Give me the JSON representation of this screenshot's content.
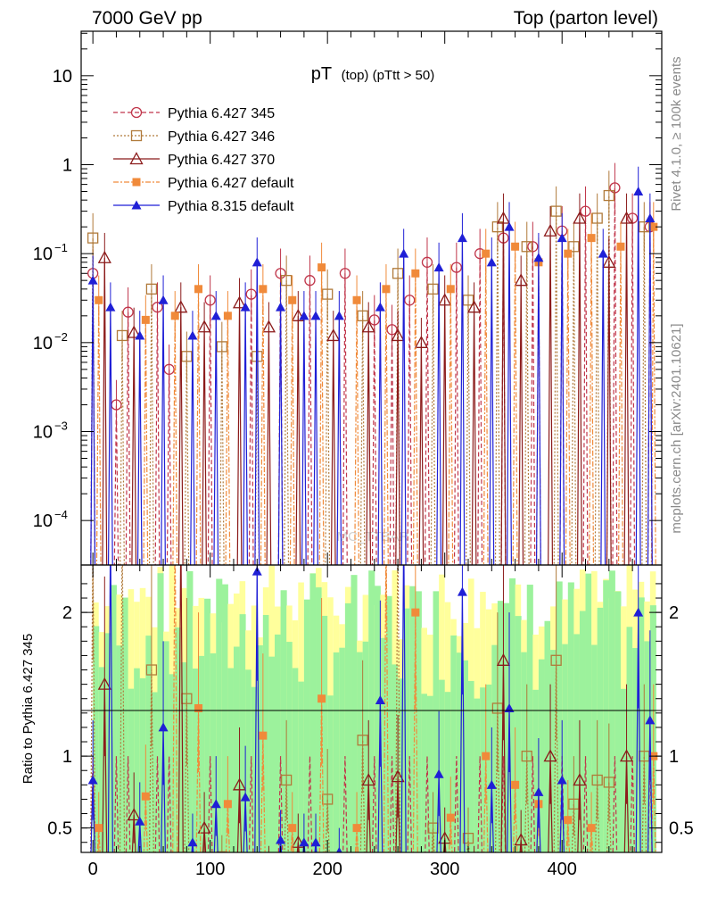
{
  "header": {
    "left": "7000 GeV pp",
    "right": "Top (parton level)"
  },
  "side_text": {
    "rivet": "Rivet 4.1.0, ≥ 100k events",
    "mcplots": "mcplots.cern.ch [arXiv:2401.10621]"
  },
  "watermark": "MC_TTBAR",
  "chart_data": {
    "type": "line",
    "title_main": "pT",
    "title_sub": "(top)  (pTtt > 50)",
    "xlim": [
      -10,
      485
    ],
    "main_ylim_log10": [
      -4.5,
      1.5
    ],
    "main_yticks": [
      {
        "exp": 1,
        "label": "10"
      },
      {
        "exp": 0,
        "label": "1"
      },
      {
        "exp": -1,
        "label": "10",
        "sup": "−1"
      },
      {
        "exp": -2,
        "label": "10",
        "sup": "−2"
      },
      {
        "exp": -3,
        "label": "10",
        "sup": "−3"
      },
      {
        "exp": -4,
        "label": "10",
        "sup": "−4"
      }
    ],
    "ratio_ylim": [
      0.33,
      2.33
    ],
    "ratio_yticks": [
      "2",
      "1",
      "0.5"
    ],
    "ratio_ytick_values": [
      2,
      1,
      0.5
    ],
    "ratio_ylabel": "Ratio to Pythia 6.427 345",
    "xticks": [
      "0",
      "100",
      "200",
      "300",
      "400"
    ],
    "xtick_values": [
      0,
      100,
      200,
      300,
      400
    ],
    "bin_width": 5,
    "series": [
      {
        "name": "Pythia 6.427 345",
        "color": "#c0354a",
        "marker": "open-circle",
        "dash": "5,3",
        "points": [
          [
            0,
            0.06
          ],
          [
            20,
            0.002
          ],
          [
            30,
            0.022
          ],
          [
            55,
            0.025
          ],
          [
            65,
            0.005
          ],
          [
            100,
            0.03
          ],
          [
            135,
            0.035
          ],
          [
            160,
            0.06
          ],
          [
            185,
            0.05
          ],
          [
            215,
            0.06
          ],
          [
            240,
            0.018
          ],
          [
            255,
            0.014
          ],
          [
            270,
            0.03
          ],
          [
            285,
            0.08
          ],
          [
            310,
            0.07
          ],
          [
            330,
            0.1
          ],
          [
            350,
            0.15
          ],
          [
            375,
            0.12
          ],
          [
            400,
            0.18
          ],
          [
            420,
            0.3
          ],
          [
            445,
            0.55
          ],
          [
            460,
            0.25
          ],
          [
            475,
            0.2
          ]
        ]
      },
      {
        "name": "Pythia 6.427 346",
        "color": "#b07a3a",
        "marker": "open-square",
        "dash": "2,2",
        "points": [
          [
            0,
            0.15
          ],
          [
            25,
            0.012
          ],
          [
            50,
            0.04
          ],
          [
            80,
            0.007
          ],
          [
            110,
            0.009
          ],
          [
            140,
            0.007
          ],
          [
            165,
            0.05
          ],
          [
            200,
            0.035
          ],
          [
            230,
            0.02
          ],
          [
            260,
            0.06
          ],
          [
            290,
            0.04
          ],
          [
            320,
            0.03
          ],
          [
            345,
            0.2
          ],
          [
            370,
            0.12
          ],
          [
            395,
            0.3
          ],
          [
            410,
            0.12
          ],
          [
            430,
            0.25
          ],
          [
            440,
            0.45
          ],
          [
            470,
            0.2
          ]
        ]
      },
      {
        "name": "Pythia 6.427 370",
        "color": "#8b1a1a",
        "marker": "open-triangle",
        "dash": "",
        "points": [
          [
            10,
            0.09
          ],
          [
            35,
            0.013
          ],
          [
            75,
            0.025
          ],
          [
            95,
            0.015
          ],
          [
            125,
            0.028
          ],
          [
            150,
            0.015
          ],
          [
            175,
            0.02
          ],
          [
            205,
            0.012
          ],
          [
            235,
            0.015
          ],
          [
            260,
            0.012
          ],
          [
            280,
            0.01
          ],
          [
            300,
            0.03
          ],
          [
            325,
            0.025
          ],
          [
            350,
            0.25
          ],
          [
            365,
            0.05
          ],
          [
            390,
            0.18
          ],
          [
            415,
            0.25
          ],
          [
            440,
            0.08
          ],
          [
            455,
            0.25
          ]
        ]
      },
      {
        "name": "Pythia 6.427 default",
        "color": "#f08a3a",
        "marker": "filled-square",
        "dash": "6,2,2,2",
        "points": [
          [
            5,
            0.03
          ],
          [
            45,
            0.018
          ],
          [
            70,
            0.02
          ],
          [
            90,
            0.04
          ],
          [
            115,
            0.02
          ],
          [
            145,
            0.04
          ],
          [
            170,
            0.03
          ],
          [
            195,
            0.07
          ],
          [
            225,
            0.03
          ],
          [
            250,
            0.04
          ],
          [
            275,
            0.06
          ],
          [
            305,
            0.04
          ],
          [
            335,
            0.1
          ],
          [
            360,
            0.12
          ],
          [
            380,
            0.08
          ],
          [
            405,
            0.1
          ],
          [
            425,
            0.15
          ],
          [
            450,
            0.12
          ],
          [
            478,
            0.2
          ]
        ]
      },
      {
        "name": "Pythia 8.315 default",
        "color": "#1f1fd6",
        "marker": "filled-triangle",
        "dash": "",
        "points": [
          [
            0,
            0.05
          ],
          [
            15,
            0.025
          ],
          [
            40,
            0.012
          ],
          [
            60,
            0.03
          ],
          [
            85,
            0.012
          ],
          [
            105,
            0.02
          ],
          [
            130,
            0.025
          ],
          [
            140,
            0.08
          ],
          [
            160,
            0.025
          ],
          [
            180,
            0.02
          ],
          [
            190,
            0.02
          ],
          [
            210,
            0.02
          ],
          [
            245,
            0.025
          ],
          [
            265,
            0.1
          ],
          [
            295,
            0.07
          ],
          [
            315,
            0.15
          ],
          [
            340,
            0.08
          ],
          [
            355,
            0.2
          ],
          [
            380,
            0.09
          ],
          [
            400,
            0.15
          ],
          [
            435,
            0.1
          ],
          [
            465,
            0.5
          ],
          [
            475,
            0.25
          ]
        ]
      }
    ]
  }
}
